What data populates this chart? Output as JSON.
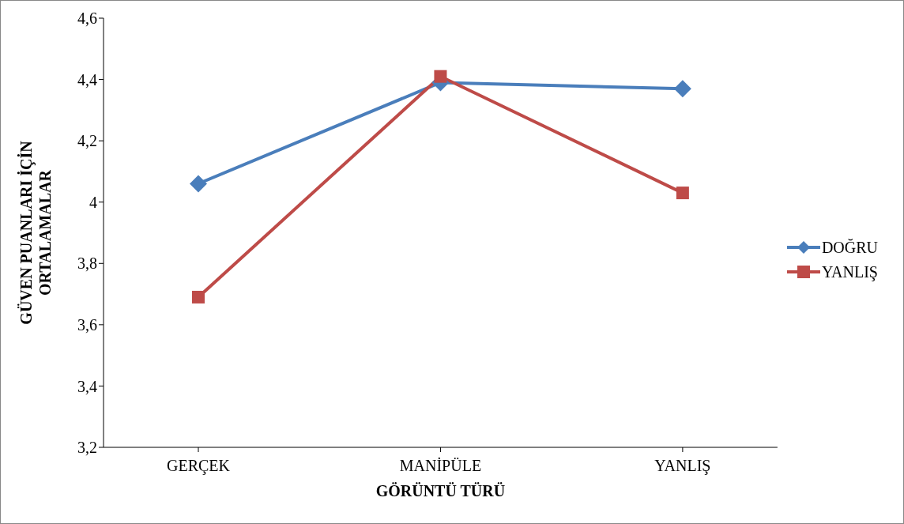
{
  "chart_data": {
    "type": "line",
    "xlabel": "GÖRÜNTÜ TÜRÜ",
    "ylabel": "GÜVEN PUANLARI İÇİN ORTALAMALAR",
    "categories": [
      "GERÇEK",
      "MANİPÜLE",
      "YANLIŞ"
    ],
    "series": [
      {
        "name": "DOĞRU",
        "color": "#4a7ebb",
        "values": [
          4.06,
          4.39,
          4.37
        ],
        "marker": "diamond"
      },
      {
        "name": "YANLIŞ",
        "color": "#be4b48",
        "values": [
          3.69,
          4.41,
          4.03
        ],
        "marker": "square"
      }
    ],
    "ylim": [
      3.2,
      4.6
    ],
    "yticks": [
      {
        "value": 3.2,
        "label": "3,2"
      },
      {
        "value": 3.4,
        "label": "3,4"
      },
      {
        "value": 3.6,
        "label": "3,6"
      },
      {
        "value": 3.8,
        "label": "3,8"
      },
      {
        "value": 4,
        "label": "4"
      },
      {
        "value": 4.2,
        "label": "4,2"
      },
      {
        "value": 4.4,
        "label": "4,4"
      },
      {
        "value": 4.6,
        "label": "4,6"
      }
    ],
    "grid": false,
    "legend": "right",
    "line_style": "solid"
  }
}
